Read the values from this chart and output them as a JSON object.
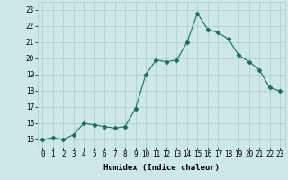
{
  "x": [
    0,
    1,
    2,
    3,
    4,
    5,
    6,
    7,
    8,
    9,
    10,
    11,
    12,
    13,
    14,
    15,
    16,
    17,
    18,
    19,
    20,
    21,
    22,
    23
  ],
  "y": [
    15.0,
    15.1,
    15.0,
    15.3,
    16.0,
    15.9,
    15.8,
    15.7,
    15.8,
    16.9,
    19.0,
    19.9,
    19.8,
    19.9,
    21.0,
    22.8,
    21.8,
    21.6,
    21.2,
    20.2,
    19.8,
    19.3,
    18.2,
    18.0
  ],
  "line_color": "#1a6b5a",
  "marker": "D",
  "markersize": 2.5,
  "bg_color": "#cce8e8",
  "grid_color": "#aacccc",
  "xlabel": "Humidex (Indice chaleur)",
  "xlim": [
    -0.5,
    23.5
  ],
  "ylim": [
    14.5,
    23.5
  ],
  "yticks": [
    15,
    16,
    17,
    18,
    19,
    20,
    21,
    22,
    23
  ],
  "xticks": [
    0,
    1,
    2,
    3,
    4,
    5,
    6,
    7,
    8,
    9,
    10,
    11,
    12,
    13,
    14,
    15,
    16,
    17,
    18,
    19,
    20,
    21,
    22,
    23
  ],
  "label_fontsize": 6.5,
  "tick_fontsize": 5.5
}
